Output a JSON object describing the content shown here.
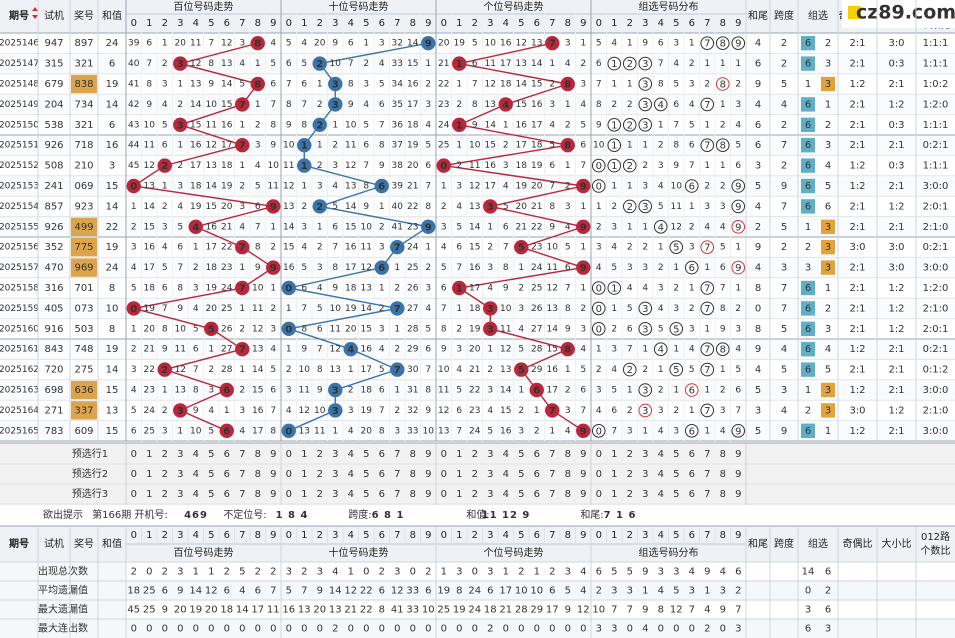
{
  "watermark": "cz89.com",
  "header": {
    "issue": "期号",
    "trial": "试机",
    "draw": "奖号",
    "sum": "和值",
    "sections": [
      "百位号码走势",
      "十位号码走势",
      "个位号码走势",
      "组选号码分布"
    ],
    "digits": [
      0,
      1,
      2,
      3,
      4,
      5,
      6,
      7,
      8,
      9
    ],
    "tail": "和尾",
    "span": "跨度",
    "group": "组选",
    "odd_even": "奇偶比",
    "big_small": "大小比",
    "road": "012路",
    "road_sub": "个数比"
  },
  "rows": [
    {
      "issue": "2025146",
      "trial": "947",
      "draw": "897",
      "sum": 24,
      "bai": [
        39,
        6,
        1,
        20,
        11,
        7,
        12,
        3,
        8,
        4
      ],
      "shi": [
        5,
        4,
        20,
        9,
        6,
        1,
        3,
        32,
        14,
        9
      ],
      "ge": [
        20,
        19,
        5,
        10,
        16,
        12,
        13,
        7,
        3,
        1
      ],
      "zu": [
        5,
        4,
        1,
        9,
        6,
        3,
        1,
        7,
        8,
        9
      ],
      "tail": 4,
      "span": 2,
      "zu6": 6,
      "zu3": 2,
      "odd_even": "2:1",
      "big_small": "3:0",
      "road": "1:1:1"
    },
    {
      "issue": "2025147",
      "trial": "315",
      "draw": "321",
      "sum": 6,
      "bai": [
        40,
        7,
        2,
        3,
        12,
        8,
        13,
        4,
        1,
        5
      ],
      "shi": [
        6,
        5,
        2,
        10,
        7,
        2,
        4,
        33,
        15,
        1
      ],
      "ge": [
        21,
        1,
        6,
        11,
        17,
        13,
        14,
        1,
        4,
        2
      ],
      "zu": [
        6,
        1,
        2,
        3,
        7,
        4,
        2,
        1,
        1,
        1
      ],
      "tail": 6,
      "span": 2,
      "zu6": 6,
      "zu3": 3,
      "odd_even": "2:1",
      "big_small": "0:3",
      "road": "1:1:1"
    },
    {
      "issue": "2025148",
      "trial": "679",
      "draw": "838",
      "sum": 19,
      "bai": [
        41,
        8,
        3,
        1,
        13,
        9,
        14,
        5,
        8,
        6
      ],
      "shi": [
        7,
        6,
        1,
        3,
        8,
        3,
        5,
        34,
        16,
        2
      ],
      "ge": [
        22,
        1,
        7,
        12,
        18,
        14,
        15,
        2,
        8,
        3
      ],
      "zu": [
        7,
        1,
        1,
        3,
        8,
        5,
        3,
        2,
        8,
        2
      ],
      "tail": 9,
      "span": 5,
      "zu6": 1,
      "zu3": 3,
      "odd_even": "1:2",
      "big_small": "2:1",
      "road": "1:0:2"
    },
    {
      "issue": "2025149",
      "trial": "204",
      "draw": "734",
      "sum": 14,
      "bai": [
        42,
        9,
        4,
        2,
        14,
        10,
        15,
        7,
        1,
        7
      ],
      "shi": [
        8,
        7,
        2,
        3,
        9,
        4,
        6,
        35,
        17,
        3
      ],
      "ge": [
        23,
        2,
        8,
        13,
        4,
        15,
        16,
        3,
        1,
        4
      ],
      "zu": [
        8,
        2,
        2,
        3,
        4,
        6,
        4,
        7,
        1,
        3
      ],
      "tail": 4,
      "span": 4,
      "zu6": 6,
      "zu3": 1,
      "odd_even": "2:1",
      "big_small": "1:2",
      "road": "1:2:0"
    },
    {
      "issue": "2025150",
      "trial": "538",
      "draw": "321",
      "sum": 6,
      "bai": [
        43,
        10,
        5,
        3,
        15,
        11,
        16,
        1,
        2,
        8
      ],
      "shi": [
        9,
        8,
        2,
        1,
        10,
        5,
        7,
        36,
        18,
        4
      ],
      "ge": [
        24,
        1,
        9,
        14,
        1,
        16,
        17,
        4,
        2,
        5
      ],
      "zu": [
        9,
        1,
        2,
        3,
        1,
        7,
        5,
        1,
        2,
        4
      ],
      "tail": 6,
      "span": 2,
      "zu6": 6,
      "zu3": 2,
      "odd_even": "2:1",
      "big_small": "0:3",
      "road": "1:1:1"
    },
    {
      "issue": "2025151",
      "trial": "926",
      "draw": "718",
      "sum": 16,
      "bai": [
        44,
        11,
        6,
        1,
        16,
        12,
        17,
        7,
        3,
        9
      ],
      "shi": [
        10,
        1,
        1,
        2,
        11,
        6,
        8,
        37,
        19,
        5
      ],
      "ge": [
        25,
        1,
        10,
        15,
        2,
        17,
        18,
        5,
        8,
        6
      ],
      "zu": [
        10,
        1,
        1,
        1,
        2,
        8,
        6,
        7,
        8,
        5
      ],
      "tail": 6,
      "span": 7,
      "zu6": 6,
      "zu3": 3,
      "odd_even": "2:1",
      "big_small": "2:1",
      "road": "0:2:1"
    },
    {
      "issue": "2025152",
      "trial": "508",
      "draw": "210",
      "sum": 3,
      "bai": [
        45,
        12,
        2,
        2,
        17,
        13,
        18,
        1,
        4,
        10
      ],
      "shi": [
        11,
        1,
        2,
        3,
        12,
        7,
        9,
        38,
        20,
        6
      ],
      "ge": [
        0,
        2,
        11,
        16,
        3,
        18,
        19,
        6,
        1,
        7
      ],
      "zu": [
        0,
        1,
        2,
        2,
        3,
        9,
        7,
        1,
        1,
        6
      ],
      "tail": 3,
      "span": 2,
      "zu6": 6,
      "zu3": 4,
      "odd_even": "1:2",
      "big_small": "0:3",
      "road": "1:1:1"
    },
    {
      "issue": "2025153",
      "trial": "241",
      "draw": "069",
      "sum": 15,
      "bai": [
        0,
        13,
        1,
        3,
        18,
        14,
        19,
        2,
        5,
        11
      ],
      "shi": [
        12,
        1,
        3,
        4,
        13,
        8,
        6,
        39,
        21,
        7
      ],
      "ge": [
        1,
        3,
        12,
        17,
        4,
        19,
        20,
        7,
        2,
        9
      ],
      "zu": [
        0,
        1,
        1,
        3,
        4,
        10,
        6,
        2,
        2,
        9
      ],
      "tail": 5,
      "span": 9,
      "zu6": 6,
      "zu3": 5,
      "odd_even": "1:2",
      "big_small": "2:1",
      "road": "3:0:0"
    },
    {
      "issue": "2025154",
      "trial": "857",
      "draw": "923",
      "sum": 14,
      "bai": [
        1,
        14,
        2,
        4,
        19,
        15,
        20,
        3,
        6,
        9
      ],
      "shi": [
        13,
        2,
        2,
        5,
        14,
        9,
        1,
        40,
        22,
        8
      ],
      "ge": [
        2,
        4,
        13,
        3,
        5,
        20,
        21,
        8,
        3,
        1
      ],
      "zu": [
        1,
        2,
        2,
        3,
        5,
        11,
        1,
        3,
        3,
        9
      ],
      "tail": 4,
      "span": 7,
      "zu6": 6,
      "zu3": 6,
      "odd_even": "2:1",
      "big_small": "1:2",
      "road": "2:0:1"
    },
    {
      "issue": "2025155",
      "trial": "926",
      "draw": "499",
      "sum": 22,
      "bai": [
        2,
        15,
        3,
        5,
        4,
        16,
        21,
        4,
        7,
        1
      ],
      "shi": [
        14,
        3,
        1,
        6,
        15,
        10,
        2,
        41,
        23,
        9
      ],
      "ge": [
        3,
        5,
        14,
        1,
        6,
        21,
        22,
        9,
        4,
        9
      ],
      "zu": [
        2,
        3,
        1,
        1,
        4,
        12,
        2,
        4,
        4,
        9
      ],
      "tail": 2,
      "span": 5,
      "zu6": 1,
      "zu3": 3,
      "odd_even": "2:1",
      "big_small": "2:1",
      "road": "2:1:0"
    },
    {
      "issue": "2025156",
      "trial": "352",
      "draw": "775",
      "sum": 19,
      "bai": [
        3,
        16,
        4,
        6,
        1,
        17,
        22,
        7,
        8,
        2
      ],
      "shi": [
        15,
        4,
        2,
        7,
        16,
        11,
        3,
        7,
        24,
        1
      ],
      "ge": [
        4,
        6,
        15,
        2,
        7,
        5,
        23,
        10,
        5,
        1
      ],
      "zu": [
        3,
        4,
        2,
        2,
        1,
        5,
        3,
        7,
        5,
        1
      ],
      "tail": 9,
      "span": 2,
      "zu6": 2,
      "zu3": 3,
      "odd_even": "3:0",
      "big_small": "3:0",
      "road": "0:2:1"
    },
    {
      "issue": "2025157",
      "trial": "470",
      "draw": "969",
      "sum": 24,
      "bai": [
        4,
        17,
        5,
        7,
        2,
        18,
        23,
        1,
        9,
        9
      ],
      "shi": [
        16,
        5,
        3,
        8,
        17,
        12,
        6,
        1,
        25,
        2
      ],
      "ge": [
        5,
        7,
        16,
        3,
        8,
        1,
        24,
        11,
        6,
        9
      ],
      "zu": [
        4,
        5,
        3,
        3,
        2,
        1,
        6,
        1,
        6,
        9
      ],
      "tail": 4,
      "span": 3,
      "zu6": 3,
      "zu3": 3,
      "odd_even": "2:1",
      "big_small": "3:0",
      "road": "3:0:0"
    },
    {
      "issue": "2025158",
      "trial": "316",
      "draw": "701",
      "sum": 8,
      "bai": [
        5,
        18,
        6,
        8,
        3,
        19,
        24,
        7,
        10,
        1
      ],
      "shi": [
        0,
        6,
        4,
        9,
        18,
        13,
        1,
        2,
        26,
        3
      ],
      "ge": [
        6,
        1,
        17,
        4,
        9,
        2,
        25,
        12,
        7,
        1
      ],
      "zu": [
        0,
        1,
        4,
        4,
        3,
        2,
        1,
        7,
        7,
        1
      ],
      "tail": 8,
      "span": 7,
      "zu6": 6,
      "zu3": 1,
      "odd_even": "2:1",
      "big_small": "1:2",
      "road": "1:2:0"
    },
    {
      "issue": "2025159",
      "trial": "405",
      "draw": "073",
      "sum": 10,
      "bai": [
        0,
        19,
        7,
        9,
        4,
        20,
        25,
        1,
        11,
        2
      ],
      "shi": [
        1,
        7,
        5,
        10,
        19,
        14,
        2,
        7,
        27,
        4
      ],
      "ge": [
        7,
        1,
        18,
        3,
        10,
        3,
        26,
        13,
        8,
        2
      ],
      "zu": [
        0,
        1,
        5,
        3,
        4,
        3,
        2,
        7,
        8,
        2
      ],
      "tail": 0,
      "span": 7,
      "zu6": 6,
      "zu3": 2,
      "odd_even": "2:1",
      "big_small": "1:2",
      "road": "2:1:0"
    },
    {
      "issue": "2025160",
      "trial": "916",
      "draw": "503",
      "sum": 8,
      "bai": [
        1,
        20,
        8,
        10,
        5,
        5,
        26,
        2,
        12,
        3
      ],
      "shi": [
        0,
        8,
        6,
        11,
        20,
        15,
        3,
        1,
        28,
        5
      ],
      "ge": [
        8,
        2,
        19,
        3,
        11,
        4,
        27,
        14,
        9,
        3
      ],
      "zu": [
        0,
        2,
        6,
        3,
        5,
        5,
        3,
        1,
        9,
        3
      ],
      "tail": 8,
      "span": 5,
      "zu6": 6,
      "zu3": 3,
      "odd_even": "2:1",
      "big_small": "1:2",
      "road": "2:0:1"
    },
    {
      "issue": "2025161",
      "trial": "843",
      "draw": "748",
      "sum": 19,
      "bai": [
        2,
        21,
        9,
        11,
        6,
        1,
        27,
        7,
        13,
        4
      ],
      "shi": [
        1,
        9,
        7,
        12,
        4,
        16,
        4,
        2,
        29,
        6
      ],
      "ge": [
        9,
        3,
        20,
        1,
        12,
        5,
        28,
        15,
        8,
        4
      ],
      "zu": [
        1,
        3,
        7,
        1,
        4,
        1,
        4,
        7,
        8,
        4
      ],
      "tail": 9,
      "span": 4,
      "zu6": 6,
      "zu3": 4,
      "odd_even": "1:2",
      "big_small": "2:1",
      "road": "0:2:1"
    },
    {
      "issue": "2025162",
      "trial": "720",
      "draw": "275",
      "sum": 14,
      "bai": [
        3,
        22,
        2,
        12,
        7,
        2,
        28,
        1,
        14,
        5
      ],
      "shi": [
        2,
        10,
        8,
        13,
        1,
        17,
        5,
        7,
        30,
        7
      ],
      "ge": [
        10,
        4,
        21,
        2,
        13,
        5,
        29,
        16,
        1,
        5
      ],
      "zu": [
        2,
        4,
        2,
        2,
        1,
        5,
        5,
        7,
        1,
        5
      ],
      "tail": 4,
      "span": 5,
      "zu6": 6,
      "zu3": 5,
      "odd_even": "2:1",
      "big_small": "2:1",
      "road": "0:1:2"
    },
    {
      "issue": "2025163",
      "trial": "698",
      "draw": "636",
      "sum": 15,
      "bai": [
        4,
        23,
        1,
        13,
        8,
        3,
        6,
        2,
        15,
        6
      ],
      "shi": [
        3,
        11,
        9,
        3,
        2,
        18,
        6,
        1,
        31,
        8
      ],
      "ge": [
        11,
        5,
        22,
        3,
        14,
        1,
        6,
        17,
        2,
        6
      ],
      "zu": [
        3,
        5,
        1,
        3,
        2,
        1,
        6,
        1,
        2,
        6
      ],
      "tail": 5,
      "span": 3,
      "zu6": 1,
      "zu3": 3,
      "odd_even": "1:2",
      "big_small": "2:1",
      "road": "3:0:0"
    },
    {
      "issue": "2025164",
      "trial": "271",
      "draw": "337",
      "sum": 13,
      "bai": [
        5,
        24,
        2,
        3,
        9,
        4,
        1,
        3,
        16,
        7
      ],
      "shi": [
        4,
        12,
        10,
        3,
        3,
        19,
        7,
        2,
        32,
        9
      ],
      "ge": [
        12,
        6,
        23,
        4,
        15,
        2,
        1,
        7,
        3,
        7
      ],
      "zu": [
        4,
        6,
        2,
        3,
        3,
        2,
        1,
        7,
        3,
        7
      ],
      "tail": 3,
      "span": 4,
      "zu6": 2,
      "zu3": 3,
      "odd_even": "3:0",
      "big_small": "1:2",
      "road": "2:1:0"
    },
    {
      "issue": "2025165",
      "trial": "783",
      "draw": "609",
      "sum": 15,
      "bai": [
        6,
        25,
        3,
        1,
        10,
        5,
        6,
        4,
        17,
        8
      ],
      "shi": [
        0,
        13,
        11,
        1,
        4,
        20,
        8,
        3,
        33,
        10
      ],
      "ge": [
        13,
        7,
        24,
        5,
        16,
        3,
        2,
        1,
        4,
        9
      ],
      "zu": [
        0,
        7,
        3,
        1,
        4,
        3,
        6,
        1,
        4,
        9
      ],
      "tail": 5,
      "span": 9,
      "zu6": 6,
      "zu3": 1,
      "odd_even": "1:2",
      "big_small": "2:1",
      "road": "3:0:0"
    }
  ],
  "preselect": [
    "预选行1",
    "预选行2",
    "预选行3"
  ],
  "hint": {
    "label": "欲出提示",
    "items": [
      {
        "label": "第166期 开机号:",
        "value": "469"
      },
      {
        "label": "不定位号:",
        "value": "1 8 4"
      },
      {
        "label": "跨度:",
        "value": "6 8 1"
      },
      {
        "label": "和值:",
        "value": "11 12 9"
      },
      {
        "label": "和尾:",
        "value": "7 1 6"
      }
    ]
  },
  "stats": [
    {
      "label": "出现总次数",
      "bai": [
        2,
        0,
        2,
        3,
        1,
        1,
        2,
        5,
        2,
        2
      ],
      "shi": [
        3,
        2,
        3,
        4,
        1,
        0,
        2,
        3,
        0,
        2
      ],
      "ge": [
        1,
        3,
        0,
        3,
        1,
        2,
        1,
        2,
        3,
        4
      ],
      "zu": [
        6,
        5,
        5,
        9,
        3,
        3,
        4,
        9,
        4,
        6
      ],
      "group": [
        14,
        6
      ]
    },
    {
      "label": "平均遗漏值",
      "bai": [
        18,
        25,
        6,
        9,
        14,
        12,
        6,
        4,
        6,
        7
      ],
      "shi": [
        5,
        7,
        9,
        14,
        12,
        22,
        6,
        12,
        33,
        6
      ],
      "ge": [
        19,
        8,
        24,
        6,
        17,
        10,
        10,
        6,
        5,
        4
      ],
      "zu": [
        2,
        3,
        3,
        1,
        4,
        5,
        3,
        1,
        3,
        2
      ],
      "group": [
        0,
        2
      ]
    },
    {
      "label": "最大遗漏值",
      "bai": [
        45,
        25,
        9,
        20,
        19,
        20,
        18,
        14,
        17,
        11
      ],
      "shi": [
        16,
        13,
        20,
        13,
        21,
        22,
        8,
        41,
        33,
        10
      ],
      "ge": [
        25,
        19,
        24,
        18,
        21,
        28,
        29,
        17,
        9,
        12
      ],
      "zu": [
        10,
        7,
        7,
        9,
        8,
        12,
        7,
        4,
        9,
        7
      ],
      "group": [
        3,
        6
      ]
    },
    {
      "label": "最大连出数",
      "bai": [
        0,
        0,
        0,
        0,
        0,
        0,
        0,
        0,
        0,
        0
      ],
      "shi": [
        0,
        0,
        0,
        2,
        0,
        0,
        0,
        0,
        0,
        0
      ],
      "ge": [
        0,
        0,
        0,
        2,
        0,
        0,
        0,
        0,
        0,
        0
      ],
      "zu": [
        3,
        3,
        0,
        4,
        0,
        0,
        0,
        2,
        0,
        3
      ],
      "group": [
        6,
        3
      ]
    }
  ]
}
